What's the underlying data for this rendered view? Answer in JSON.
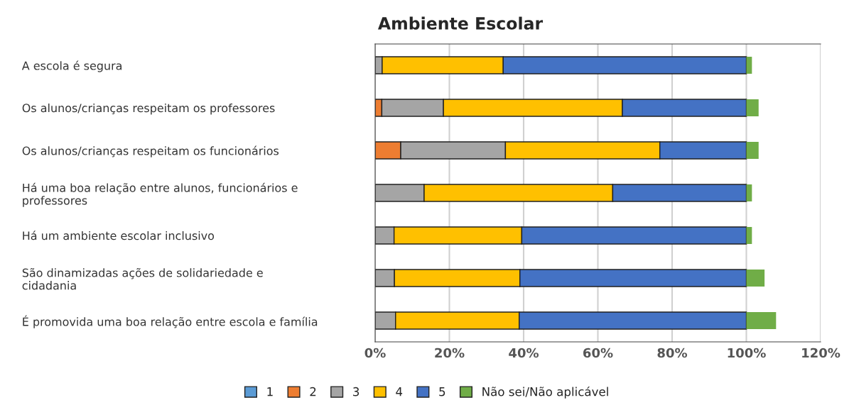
{
  "chart_data": {
    "type": "bar",
    "orientation": "horizontal",
    "stacked": true,
    "title": "Ambiente Escolar",
    "categories": [
      "A escola é segura",
      "Os alunos/crianças respeitam os professores",
      "Os alunos/crianças respeitam os funcionários",
      "Há uma boa relação entre alunos, funcionários e\nprofessores",
      "Há um ambiente escolar inclusivo",
      "São dinamizadas ações de solidariedade e\ncidadania",
      "É promovida uma boa relação entre escola e família"
    ],
    "series": [
      {
        "name": "1",
        "color": "#5b9bd5",
        "values": [
          0,
          0,
          0,
          0,
          0,
          0,
          0
        ]
      },
      {
        "name": "2",
        "color": "#ed7d31",
        "values": [
          0,
          1.8,
          6.9,
          0,
          0,
          0,
          0
        ]
      },
      {
        "name": "3",
        "color": "#a5a5a5",
        "values": [
          1.9,
          16.6,
          28.2,
          13.2,
          5.1,
          5.2,
          5.5
        ]
      },
      {
        "name": "4",
        "color": "#ffc000",
        "values": [
          32.6,
          48.2,
          41.6,
          50.8,
          34.4,
          33.8,
          33.3
        ]
      },
      {
        "name": "5",
        "color": "#4472c4",
        "values": [
          65.5,
          33.4,
          23.3,
          36.0,
          60.5,
          61.0,
          61.2
        ]
      },
      {
        "name": "Não sei/Não aplicável",
        "color": "#70ad47",
        "values": [
          1.5,
          3.3,
          3.3,
          1.5,
          1.5,
          4.9,
          8.0
        ]
      }
    ],
    "xlim": [
      0,
      120
    ],
    "xticks": [
      {
        "value": 0,
        "label": "0%"
      },
      {
        "value": 20,
        "label": "20%"
      },
      {
        "value": 40,
        "label": "40%"
      },
      {
        "value": 60,
        "label": "60%"
      },
      {
        "value": 80,
        "label": "80%"
      },
      {
        "value": 100,
        "label": "100%"
      },
      {
        "value": 120,
        "label": "120%"
      }
    ],
    "grid": "x",
    "legend": "bottom"
  }
}
